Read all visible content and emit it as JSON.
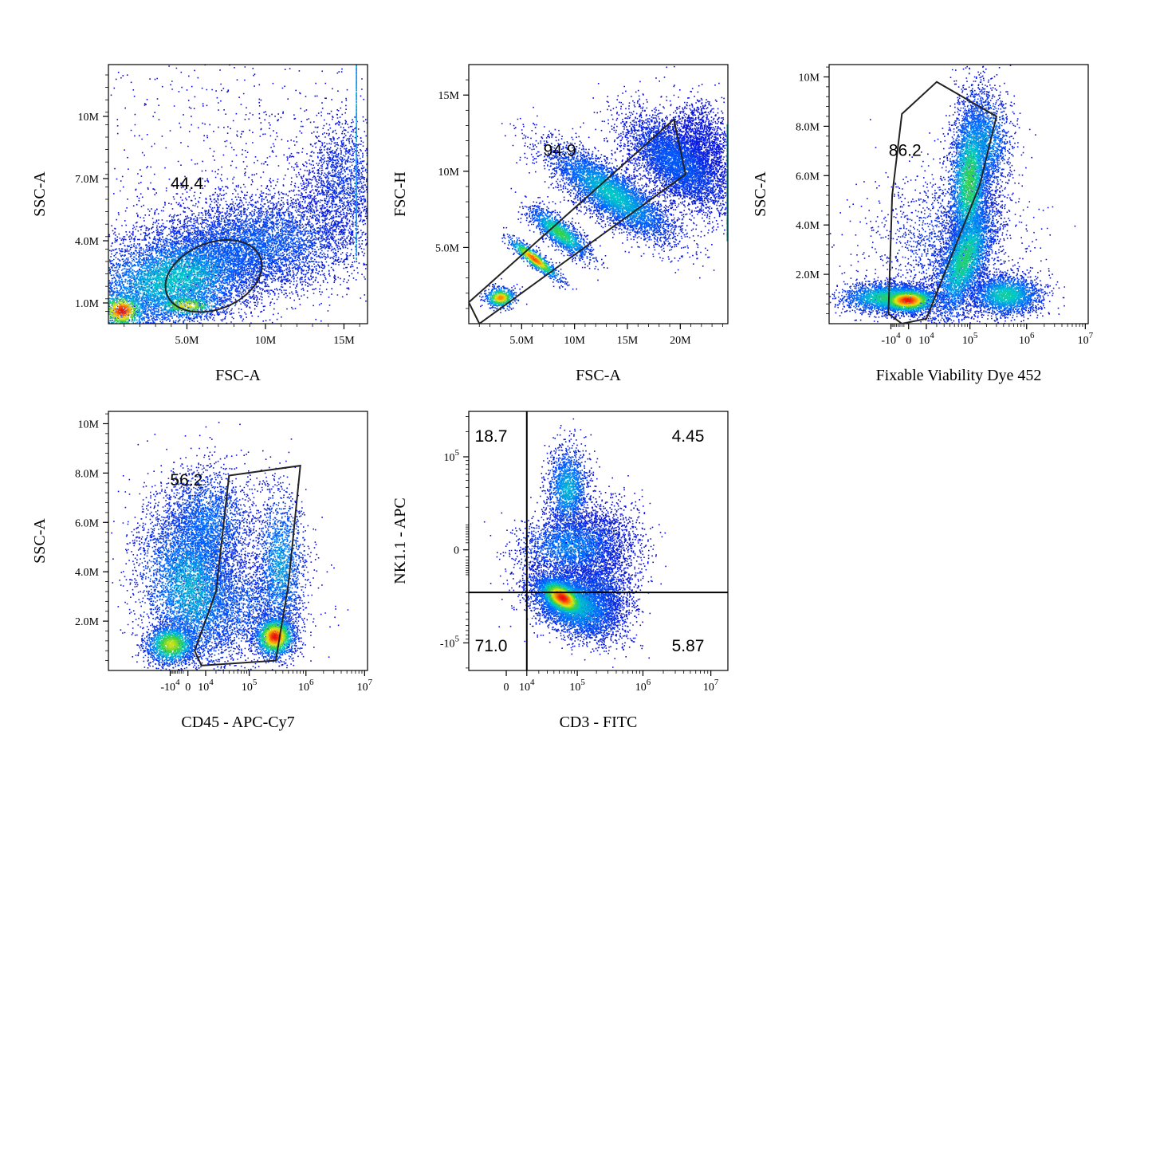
{
  "chart_data": [
    {
      "type": "scatter",
      "id": "p1",
      "xlabel": "FSC-A",
      "ylabel": "SSC-A",
      "xlim": [
        0,
        16500000
      ],
      "ylim": [
        0,
        12500000
      ],
      "x_ticks": [
        {
          "value": 5000000,
          "label": "5.0M"
        },
        {
          "value": 10000000,
          "label": "10M"
        },
        {
          "value": 15000000,
          "label": "15M"
        }
      ],
      "y_ticks": [
        {
          "value": 1000000,
          "label": "1.0M"
        },
        {
          "value": 4000000,
          "label": "4.0M"
        },
        {
          "value": 7000000,
          "label": "7.0M"
        },
        {
          "value": 10000000,
          "label": "10M"
        }
      ],
      "gates": [
        {
          "shape": "ellipse",
          "label": "44.4",
          "center": [
            6700000,
            2300000
          ],
          "rx": 6400000,
          "ry": 1600000,
          "angle_deg": -22,
          "label_at": [
            5000000,
            6500000
          ]
        }
      ]
    },
    {
      "type": "scatter",
      "id": "p2",
      "xlabel": "FSC-A",
      "ylabel": "FSC-H",
      "xlim": [
        0,
        24500000
      ],
      "ylim": [
        0,
        17000000
      ],
      "x_ticks": [
        {
          "value": 5000000,
          "label": "5.0M"
        },
        {
          "value": 10000000,
          "label": "10M"
        },
        {
          "value": 15000000,
          "label": "15M"
        },
        {
          "value": 20000000,
          "label": "20M"
        }
      ],
      "y_ticks": [
        {
          "value": 5000000,
          "label": "5.0M"
        },
        {
          "value": 10000000,
          "label": "10M"
        },
        {
          "value": 15000000,
          "label": "15M"
        }
      ],
      "gates": [
        {
          "shape": "polygon",
          "label": "94.9",
          "points": [
            [
              0,
              1400000
            ],
            [
              1000000,
              0
            ],
            [
              20500000,
              9800000
            ],
            [
              19400000,
              13400000
            ]
          ],
          "label_at": [
            8600000,
            11000000
          ]
        }
      ]
    },
    {
      "type": "scatter",
      "id": "p3",
      "xlabel": "Fixable Viability Dye 452",
      "ylabel": "SSC-A",
      "x_scale": "biexponential",
      "xlim": [
        -12.2,
        10000000
      ],
      "ylim": [
        0,
        10500000
      ],
      "x_ticks": [
        {
          "value": -10000,
          "base": "-10",
          "exp": "4"
        },
        {
          "value": 0,
          "base": "0",
          "exp": ""
        },
        {
          "value": 10000,
          "base": "10",
          "exp": "4"
        },
        {
          "value": 100000,
          "base": "10",
          "exp": "5"
        },
        {
          "value": 1000000,
          "base": "10",
          "exp": "6"
        },
        {
          "value": 10000000,
          "base": "10",
          "exp": "7"
        }
      ],
      "y_ticks": [
        {
          "value": 2000000,
          "label": "2.0M"
        },
        {
          "value": 4000000,
          "label": "4.0M"
        },
        {
          "value": 6000000,
          "label": "6.0M"
        },
        {
          "value": 8000000,
          "label": "8.0M"
        },
        {
          "value": 10000000,
          "label": "10M"
        }
      ],
      "gates": [
        {
          "shape": "polygon",
          "label": "86.2",
          "points": [
            [
              -12000,
              400000
            ],
            [
              -9000,
              5200000
            ],
            [
              -3000,
              8500000
            ],
            [
              20000,
              9800000
            ],
            [
              300000,
              8400000
            ],
            [
              150000,
              5600000
            ],
            [
              10000,
              200000
            ],
            [
              -3000,
              0
            ]
          ],
          "label_at": [
            -1500,
            6800000
          ]
        }
      ]
    },
    {
      "type": "scatter",
      "id": "p4",
      "xlabel": "CD45 - APC-Cy7",
      "ylabel": "SSC-A",
      "x_scale": "biexponential",
      "xlim": [
        -12.2,
        10000000
      ],
      "ylim": [
        0,
        10500000
      ],
      "x_ticks": [
        {
          "value": -10000,
          "base": "-10",
          "exp": "4"
        },
        {
          "value": 0,
          "base": "0",
          "exp": ""
        },
        {
          "value": 10000,
          "base": "10",
          "exp": "4"
        },
        {
          "value": 100000,
          "base": "10",
          "exp": "5"
        },
        {
          "value": 1000000,
          "base": "10",
          "exp": "6"
        },
        {
          "value": 10000000,
          "base": "10",
          "exp": "7"
        }
      ],
      "y_ticks": [
        {
          "value": 2000000,
          "label": "2.0M"
        },
        {
          "value": 4000000,
          "label": "4.0M"
        },
        {
          "value": 6000000,
          "label": "6.0M"
        },
        {
          "value": 8000000,
          "label": "8.0M"
        },
        {
          "value": 10000000,
          "label": "10M"
        }
      ],
      "gates": [
        {
          "shape": "polygon",
          "label": "56.2",
          "points": [
            [
              3000,
              800000
            ],
            [
              7000,
              200000
            ],
            [
              300000,
              400000
            ],
            [
              500000,
              3500000
            ],
            [
              800000,
              8300000
            ],
            [
              40000,
              7900000
            ],
            [
              20000,
              3200000
            ]
          ],
          "label_at": [
            -600,
            7500000
          ]
        }
      ]
    },
    {
      "type": "scatter",
      "id": "p5",
      "xlabel": "CD3 - FITC",
      "ylabel": "NK1.1 - APC",
      "x_scale": "biexponential",
      "y_scale": "biexponential",
      "xlim": [
        -20,
        10000000
      ],
      "ylim": [
        -20,
        10000000
      ],
      "x_ticks": [
        {
          "value": 0,
          "base": "0",
          "exp": ""
        },
        {
          "value": 10000,
          "base": "10",
          "exp": "4"
        },
        {
          "value": 100000,
          "base": "10",
          "exp": "5"
        },
        {
          "value": 1000000,
          "base": "10",
          "exp": "6"
        },
        {
          "value": 10000000,
          "base": "10",
          "exp": "7"
        }
      ],
      "y_ticks": [
        {
          "value": -100000,
          "base": "-10",
          "exp": "5"
        },
        {
          "value": 0,
          "base": "0",
          "exp": ""
        },
        {
          "value": 100000,
          "base": "10",
          "exp": "5"
        }
      ],
      "quadrant_gate": {
        "x": 10000,
        "y": -20000
      },
      "quadrants": [
        {
          "position": "top-left",
          "label": "18.7"
        },
        {
          "position": "top-right",
          "label": "4.45"
        },
        {
          "position": "bottom-left",
          "label": "71.0"
        },
        {
          "position": "bottom-right",
          "label": "5.87"
        }
      ]
    }
  ]
}
